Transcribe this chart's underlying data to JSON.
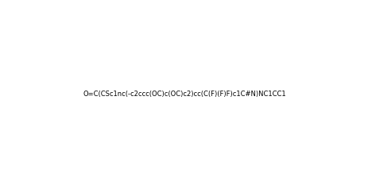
{
  "smiles": "O=C(CSc1nc(-c2ccc(OC)c(OC)c2)cc(C(F)(F)F)c1C#N)NC1CC1",
  "title": "",
  "background_color": "#ffffff",
  "figsize": [
    4.64,
    2.38
  ],
  "dpi": 100
}
